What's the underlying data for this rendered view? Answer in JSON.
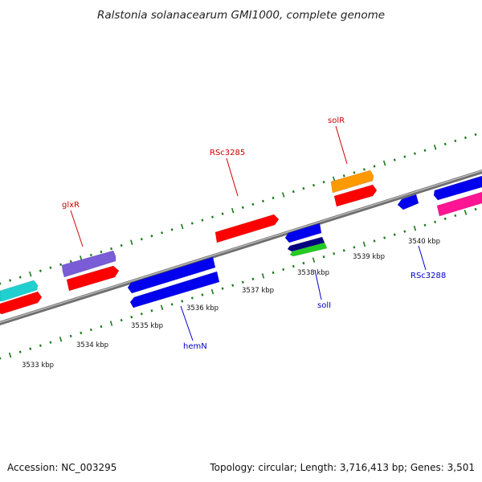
{
  "title": "Ralstonia solanacearum GMI1000, complete genome",
  "footer": {
    "accession": "Accession: NC_003295",
    "summary": "Topology: circular; Length: 3,716,413 bp; Genes: 3,501"
  },
  "colors": {
    "backbone": "#8a8a8a",
    "ticks": "#1a7a1a",
    "label_forward": "#cc0000",
    "label_reverse": "#0000cc"
  },
  "tick_labels": [
    "3533 kbp",
    "3534 kbp",
    "3535 kbp",
    "3536 kbp",
    "3537 kbp",
    "3538 kbp",
    "3539 kbp",
    "3540 kbp"
  ],
  "gene_labels": [
    {
      "id": "glxR",
      "text": "glxR",
      "strand": "forward"
    },
    {
      "id": "RSc3285",
      "text": "RSc3285",
      "strand": "forward"
    },
    {
      "id": "solR",
      "text": "solR",
      "strand": "forward"
    },
    {
      "id": "hemN",
      "text": "hemN",
      "strand": "reverse"
    },
    {
      "id": "solI",
      "text": "solI",
      "strand": "reverse"
    },
    {
      "id": "RSc3288",
      "text": "RSc3288",
      "strand": "reverse"
    }
  ],
  "features": [
    {
      "color": "#20d0d0",
      "strand": "forward"
    },
    {
      "color": "#ff0000",
      "strand": "forward"
    },
    {
      "color": "#7a5cd6",
      "strand": "forward"
    },
    {
      "color": "#ff0000",
      "strand": "forward"
    },
    {
      "color": "#ff0000",
      "strand": "forward"
    },
    {
      "color": "#ff9900",
      "strand": "forward"
    },
    {
      "color": "#ff0000",
      "strand": "forward"
    },
    {
      "color": "#0000ee",
      "strand": "reverse"
    },
    {
      "color": "#ff1493",
      "strand": "forward"
    },
    {
      "color": "#0000ee",
      "strand": "reverse"
    },
    {
      "color": "#0000ee",
      "strand": "reverse"
    },
    {
      "color": "#0000ee",
      "strand": "reverse"
    },
    {
      "color": "#0000ee",
      "strand": "reverse"
    },
    {
      "color": "#000080",
      "strand": "reverse"
    },
    {
      "color": "#22cc22",
      "strand": "reverse"
    }
  ]
}
